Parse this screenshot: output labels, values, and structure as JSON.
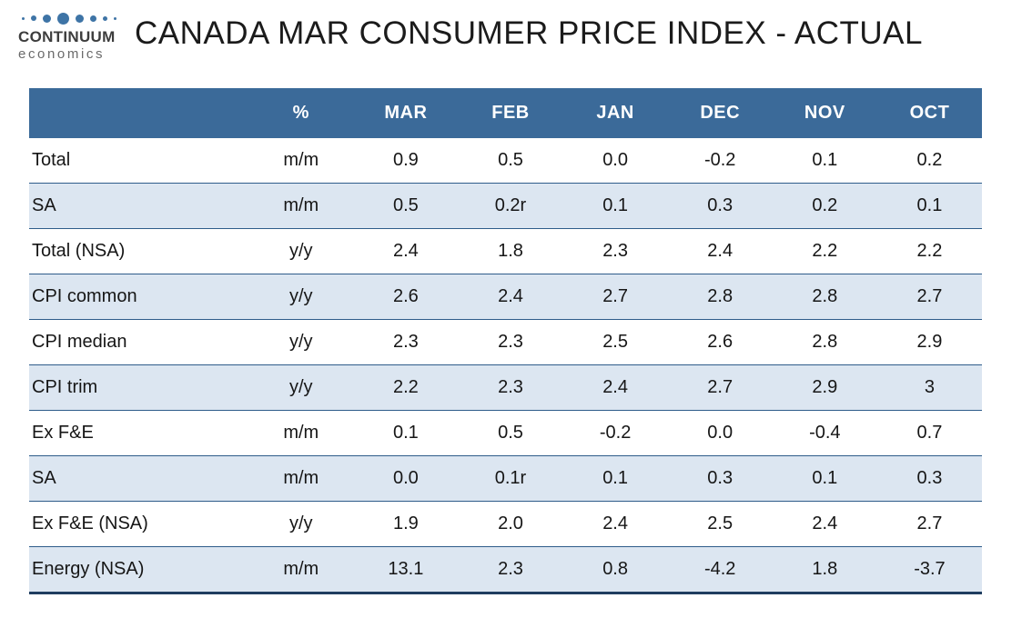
{
  "logo": {
    "brand": "CONTINUUM",
    "sub": "economics"
  },
  "title": "CANADA MAR CONSUMER PRICE INDEX - ACTUAL",
  "colors": {
    "header_bg": "#3B6A99",
    "header_text": "#FFFFFF",
    "shaded_row": "#DCE6F1",
    "border_blue": "#2E5C8A",
    "border_dark": "#1F3D60",
    "logo_dots": "#3E74A6",
    "text": "#1A1A1A"
  },
  "chart_data": {
    "type": "table",
    "title": "CANADA MAR CONSUMER PRICE INDEX - ACTUAL",
    "columns": [
      "",
      "%",
      "MAR",
      "FEB",
      "JAN",
      "DEC",
      "NOV",
      "OCT"
    ],
    "rows": [
      {
        "label": "Total",
        "unit": "m/m",
        "values": [
          "0.9",
          "0.5",
          "0.0",
          "-0.2",
          "0.1",
          "0.2"
        ],
        "shaded": false
      },
      {
        "label": "SA",
        "unit": "m/m",
        "values": [
          "0.5",
          "0.2r",
          "0.1",
          "0.3",
          "0.2",
          "0.1"
        ],
        "shaded": true
      },
      {
        "label": "Total (NSA)",
        "unit": "y/y",
        "values": [
          "2.4",
          "1.8",
          "2.3",
          "2.4",
          "2.2",
          "2.2"
        ],
        "shaded": false
      },
      {
        "label": "CPI common",
        "unit": "y/y",
        "values": [
          "2.6",
          "2.4",
          "2.7",
          "2.8",
          "2.8",
          "2.7"
        ],
        "shaded": true
      },
      {
        "label": "CPI median",
        "unit": "y/y",
        "values": [
          "2.3",
          "2.3",
          "2.5",
          "2.6",
          "2.8",
          "2.9"
        ],
        "shaded": false
      },
      {
        "label": "CPI trim",
        "unit": "y/y",
        "values": [
          "2.2",
          "2.3",
          "2.4",
          "2.7",
          "2.9",
          "3"
        ],
        "shaded": true
      },
      {
        "label": "Ex F&E",
        "unit": "m/m",
        "values": [
          "0.1",
          "0.5",
          "-0.2",
          "0.0",
          "-0.4",
          "0.7"
        ],
        "shaded": false
      },
      {
        "label": "SA",
        "unit": "m/m",
        "values": [
          "0.0",
          "0.1r",
          "0.1",
          "0.3",
          "0.1",
          "0.3"
        ],
        "shaded": true
      },
      {
        "label": "Ex F&E (NSA)",
        "unit": "y/y",
        "values": [
          "1.9",
          "2.0",
          "2.4",
          "2.5",
          "2.4",
          "2.7"
        ],
        "shaded": false
      },
      {
        "label": "Energy (NSA)",
        "unit": "m/m",
        "values": [
          "13.1",
          "2.3",
          "0.8",
          "-4.2",
          "1.8",
          "-3.7"
        ],
        "shaded": true
      }
    ]
  }
}
